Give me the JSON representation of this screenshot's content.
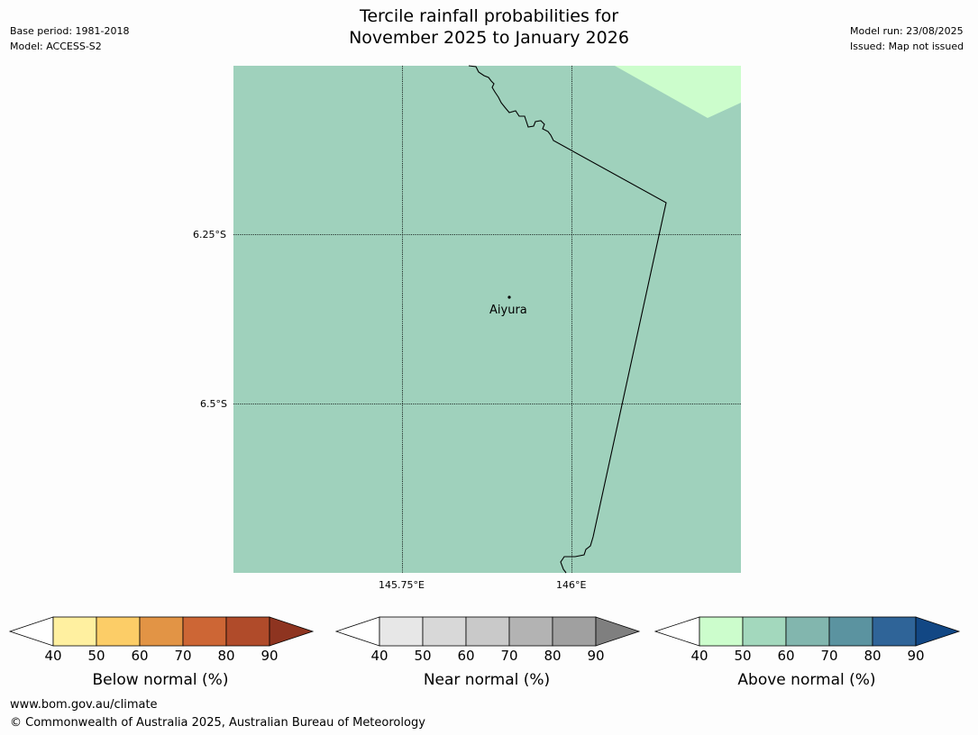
{
  "header": {
    "title_line1": "Tercile rainfall probabilities for",
    "title_line2": "November 2025 to January 2026",
    "base_period": "Base period: 1981-2018",
    "model": "Model: ACCESS-S2",
    "model_run": "Model run: 23/08/2025",
    "issued": "Issued: Map not issued"
  },
  "map": {
    "lat_ticks": [
      "6.25°S",
      "6.5°S"
    ],
    "lon_ticks": [
      "145.75°E",
      "146°E"
    ],
    "place": {
      "name": "Aiyura"
    },
    "fill_colors": {
      "main": "#9fd1bc",
      "corner": "#ccfdcc",
      "border_line": "#000000"
    }
  },
  "colorbars": [
    {
      "id": "below",
      "label": "Below normal (%)",
      "ticks": [
        "40",
        "50",
        "60",
        "70",
        "80",
        "90"
      ],
      "colors": [
        "#fff0a0",
        "#fccd67",
        "#e29445",
        "#cd6635",
        "#b04b2a",
        "#8e3420"
      ]
    },
    {
      "id": "near",
      "label": "Near normal (%)",
      "ticks": [
        "40",
        "50",
        "60",
        "70",
        "80",
        "90"
      ],
      "colors": [
        "#e7e7e7",
        "#d8d8d8",
        "#c9c9c9",
        "#b3b3b3",
        "#a0a0a0",
        "#7f7f7f"
      ]
    },
    {
      "id": "above",
      "label": "Above normal (%)",
      "ticks": [
        "40",
        "50",
        "60",
        "70",
        "80",
        "90"
      ],
      "colors": [
        "#ccfdcc",
        "#a3d8bd",
        "#82b6ae",
        "#5b93a0",
        "#2f6498",
        "#124784"
      ]
    }
  ],
  "footer": {
    "url": "www.bom.gov.au/climate",
    "copyright": "© Commonwealth of Australia 2025, Australian Bureau of Meteorology"
  }
}
